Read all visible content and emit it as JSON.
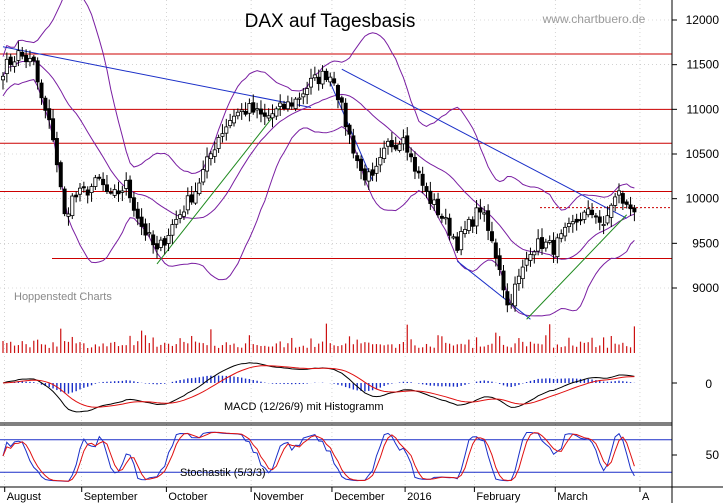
{
  "chart_data": {
    "type": "candlestick",
    "title": "DAX auf Tagesbasis",
    "watermark": "www.chartbuero.de",
    "source_label": "Hoppenstedt Charts",
    "y_ticks": [
      "12000",
      "11500",
      "11000",
      "10500",
      "10000",
      "9500",
      "9000"
    ],
    "y_range": [
      8600,
      12200
    ],
    "months": [
      {
        "label": "August",
        "day": 2
      },
      {
        "label": "September",
        "day": 22
      },
      {
        "label": "October",
        "day": 44
      },
      {
        "label": "November",
        "day": 66
      },
      {
        "label": "December",
        "day": 87
      },
      {
        "label": "2016",
        "day": 106
      },
      {
        "label": "February",
        "day": 124
      },
      {
        "label": "March",
        "day": 145
      },
      {
        "label": "A",
        "day": 167
      }
    ],
    "close_anchors": [
      [
        0,
        11450
      ],
      [
        4,
        11620
      ],
      [
        8,
        11500
      ],
      [
        10,
        11100
      ],
      [
        13,
        10700
      ],
      [
        16,
        9800
      ],
      [
        18,
        10000
      ],
      [
        22,
        10100
      ],
      [
        25,
        10200
      ],
      [
        28,
        10000
      ],
      [
        32,
        10150
      ],
      [
        36,
        9700
      ],
      [
        40,
        9400
      ],
      [
        44,
        9700
      ],
      [
        50,
        10100
      ],
      [
        56,
        10700
      ],
      [
        60,
        10950
      ],
      [
        64,
        11000
      ],
      [
        68,
        10900
      ],
      [
        72,
        11000
      ],
      [
        76,
        11100
      ],
      [
        80,
        11300
      ],
      [
        84,
        11400
      ],
      [
        86,
        11350
      ],
      [
        88,
        11000
      ],
      [
        90,
        10700
      ],
      [
        93,
        10300
      ],
      [
        96,
        10200
      ],
      [
        100,
        10600
      ],
      [
        103,
        10650
      ],
      [
        104,
        10750
      ],
      [
        106,
        10450
      ],
      [
        110,
        10050
      ],
      [
        114,
        9800
      ],
      [
        118,
        9500
      ],
      [
        121,
        9700
      ],
      [
        124,
        9900
      ],
      [
        127,
        9500
      ],
      [
        129,
        9250
      ],
      [
        131,
        8800
      ],
      [
        133,
        9000
      ],
      [
        135,
        9200
      ],
      [
        137,
        9450
      ],
      [
        140,
        9500
      ],
      [
        143,
        9450
      ],
      [
        146,
        9600
      ],
      [
        150,
        9800
      ],
      [
        154,
        9850
      ],
      [
        156,
        9650
      ],
      [
        158,
        9950
      ],
      [
        160,
        10050
      ],
      [
        162,
        9900
      ]
    ],
    "horizontal_levels": [
      11620,
      11000,
      10620,
      10080,
      9330
    ],
    "dotted_level": 9900,
    "trend_lines_blue": [
      [
        [
          0,
          11700
        ],
        [
          80,
          11020
        ]
      ],
      [
        [
          84,
          11400
        ],
        [
          96,
          10200
        ]
      ],
      [
        [
          88,
          11450
        ],
        [
          162,
          9780
        ]
      ],
      [
        [
          118,
          9300
        ],
        [
          137,
          8650
        ]
      ]
    ],
    "trend_lines_green": [
      [
        [
          40,
          9270
        ],
        [
          72,
          11020
        ]
      ],
      [
        [
          136,
          8650
        ],
        [
          162,
          9820
        ]
      ]
    ],
    "volume_label": "",
    "macd_label": "MACD (12/26/9) mit Histogramm",
    "macd_tick": "0",
    "stochastic_label": "Stochastik (5/3/3)",
    "stochastic_tick": "50",
    "series_colors": {
      "candles": "#000000",
      "resistance": "#cc0000",
      "bollinger": "#7a1fa2",
      "trend_blue": "#1a2fc8",
      "trend_green": "#1f8a1f",
      "volume": "#cc1111",
      "macd_line": "#000000",
      "signal_line": "#e01010",
      "histogram": "#1a2fc8"
    }
  }
}
